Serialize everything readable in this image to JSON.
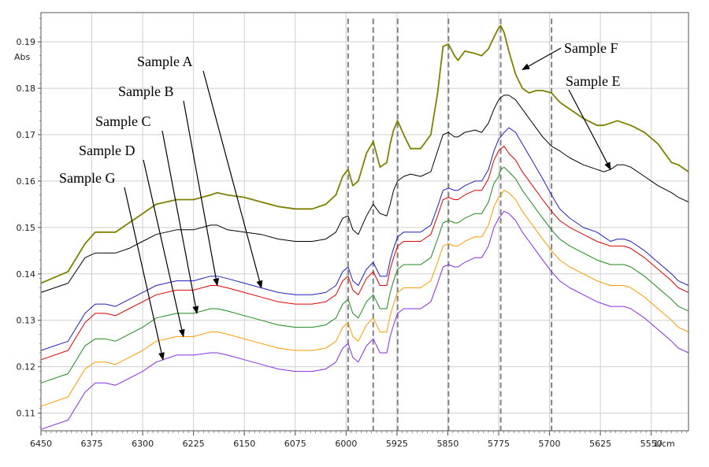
{
  "chart_data": {
    "type": "line",
    "ylabel": "Abs",
    "xunit": "1/cm",
    "xlim": [
      6450,
      5495
    ],
    "ylim": [
      0.1062,
      0.1963
    ],
    "x_ticks": [
      6450,
      6375,
      6300,
      6225,
      6150,
      6075,
      6000,
      5925,
      5850,
      5775,
      5700,
      5625,
      5550
    ],
    "y_ticks": [
      0.11,
      0.12,
      0.13,
      0.14,
      0.15,
      0.16,
      0.17,
      0.18,
      0.19
    ],
    "reference_lines_x": [
      5997,
      5960,
      5924,
      5849,
      5772,
      5697
    ],
    "series": [
      {
        "name": "Sample F",
        "color": "#808000",
        "x": [
          6450,
          6410,
          6385,
          6370,
          6355,
          6340,
          6320,
          6300,
          6280,
          6250,
          6225,
          6200,
          6190,
          6175,
          6150,
          6125,
          6100,
          6075,
          6050,
          6030,
          6015,
          6005,
          5997,
          5990,
          5982,
          5970,
          5960,
          5950,
          5940,
          5935,
          5930,
          5924,
          5915,
          5905,
          5890,
          5875,
          5865,
          5857,
          5849,
          5840,
          5835,
          5825,
          5810,
          5800,
          5790,
          5782,
          5775,
          5772,
          5767,
          5760,
          5750,
          5740,
          5730,
          5720,
          5710,
          5697,
          5685,
          5670,
          5650,
          5630,
          5620,
          5610,
          5600,
          5590,
          5580,
          5560,
          5540,
          5520,
          5510,
          5495
        ],
        "y": [
          0.138,
          0.1405,
          0.1465,
          0.149,
          0.149,
          0.149,
          0.151,
          0.153,
          0.155,
          0.156,
          0.156,
          0.157,
          0.1575,
          0.157,
          0.1565,
          0.1555,
          0.1545,
          0.154,
          0.154,
          0.155,
          0.157,
          0.161,
          0.1625,
          0.159,
          0.16,
          0.166,
          0.1685,
          0.163,
          0.164,
          0.168,
          0.171,
          0.173,
          0.17,
          0.167,
          0.167,
          0.17,
          0.179,
          0.189,
          0.1895,
          0.187,
          0.186,
          0.188,
          0.1875,
          0.187,
          0.1885,
          0.191,
          0.193,
          0.1935,
          0.192,
          0.188,
          0.183,
          0.18,
          0.179,
          0.1795,
          0.1795,
          0.179,
          0.177,
          0.1755,
          0.1735,
          0.172,
          0.172,
          0.1725,
          0.173,
          0.1725,
          0.172,
          0.1705,
          0.168,
          0.164,
          0.1635,
          0.162
        ]
      },
      {
        "name": "Sample E",
        "color": "#000000",
        "x": [
          6450,
          6410,
          6385,
          6370,
          6355,
          6340,
          6320,
          6300,
          6280,
          6250,
          6225,
          6200,
          6190,
          6175,
          6150,
          6125,
          6100,
          6075,
          6050,
          6030,
          6015,
          6005,
          5997,
          5990,
          5982,
          5970,
          5960,
          5950,
          5940,
          5935,
          5930,
          5924,
          5915,
          5905,
          5890,
          5875,
          5865,
          5857,
          5849,
          5840,
          5835,
          5825,
          5810,
          5800,
          5790,
          5782,
          5775,
          5772,
          5767,
          5760,
          5750,
          5740,
          5730,
          5720,
          5710,
          5697,
          5685,
          5670,
          5650,
          5630,
          5620,
          5610,
          5600,
          5590,
          5580,
          5560,
          5540,
          5520,
          5510,
          5495
        ],
        "y": [
          0.136,
          0.138,
          0.1435,
          0.1445,
          0.1445,
          0.1445,
          0.1455,
          0.147,
          0.1485,
          0.1495,
          0.1495,
          0.1505,
          0.1505,
          0.1495,
          0.149,
          0.1485,
          0.1475,
          0.147,
          0.147,
          0.1475,
          0.149,
          0.152,
          0.1525,
          0.1495,
          0.1485,
          0.1525,
          0.155,
          0.153,
          0.1525,
          0.155,
          0.158,
          0.16,
          0.161,
          0.1615,
          0.161,
          0.162,
          0.1665,
          0.17,
          0.1705,
          0.1695,
          0.1695,
          0.1705,
          0.171,
          0.1705,
          0.1725,
          0.1755,
          0.1775,
          0.178,
          0.1785,
          0.1785,
          0.1775,
          0.1755,
          0.1735,
          0.1715,
          0.1695,
          0.1675,
          0.1665,
          0.165,
          0.1635,
          0.1625,
          0.162,
          0.1625,
          0.1635,
          0.1635,
          0.163,
          0.161,
          0.159,
          0.1575,
          0.1565,
          0.1555
        ]
      },
      {
        "name": "Sample A",
        "color": "#1f1fbf",
        "x": [
          6450,
          6410,
          6385,
          6370,
          6355,
          6340,
          6320,
          6300,
          6280,
          6250,
          6225,
          6200,
          6190,
          6175,
          6150,
          6125,
          6100,
          6075,
          6050,
          6030,
          6015,
          6005,
          5997,
          5990,
          5982,
          5970,
          5960,
          5950,
          5940,
          5935,
          5930,
          5924,
          5915,
          5905,
          5890,
          5875,
          5865,
          5857,
          5849,
          5840,
          5835,
          5825,
          5810,
          5800,
          5790,
          5782,
          5775,
          5772,
          5767,
          5760,
          5750,
          5740,
          5730,
          5720,
          5710,
          5697,
          5685,
          5670,
          5650,
          5630,
          5620,
          5610,
          5600,
          5590,
          5580,
          5560,
          5540,
          5520,
          5510,
          5495
        ],
        "y": [
          0.1235,
          0.1255,
          0.1315,
          0.1335,
          0.1335,
          0.133,
          0.1345,
          0.136,
          0.1375,
          0.1385,
          0.1385,
          0.1395,
          0.1395,
          0.139,
          0.138,
          0.137,
          0.136,
          0.1355,
          0.1355,
          0.136,
          0.1375,
          0.1405,
          0.1415,
          0.1385,
          0.1375,
          0.141,
          0.1425,
          0.1395,
          0.1395,
          0.143,
          0.1455,
          0.148,
          0.149,
          0.149,
          0.149,
          0.1505,
          0.1545,
          0.158,
          0.1585,
          0.158,
          0.158,
          0.159,
          0.16,
          0.16,
          0.1625,
          0.1665,
          0.169,
          0.1695,
          0.1705,
          0.1715,
          0.1705,
          0.168,
          0.1655,
          0.163,
          0.1605,
          0.157,
          0.154,
          0.152,
          0.15,
          0.149,
          0.148,
          0.147,
          0.1475,
          0.1475,
          0.147,
          0.145,
          0.1425,
          0.14,
          0.1385,
          0.1375
        ]
      },
      {
        "name": "Sample B",
        "color": "#e00000",
        "x": [
          6450,
          6410,
          6385,
          6370,
          6355,
          6340,
          6320,
          6300,
          6280,
          6250,
          6225,
          6200,
          6190,
          6175,
          6150,
          6125,
          6100,
          6075,
          6050,
          6030,
          6015,
          6005,
          5997,
          5990,
          5982,
          5970,
          5960,
          5950,
          5940,
          5935,
          5930,
          5924,
          5915,
          5905,
          5890,
          5875,
          5865,
          5857,
          5849,
          5840,
          5835,
          5825,
          5810,
          5800,
          5790,
          5782,
          5775,
          5772,
          5767,
          5760,
          5750,
          5740,
          5730,
          5720,
          5710,
          5697,
          5685,
          5670,
          5650,
          5630,
          5620,
          5610,
          5600,
          5590,
          5580,
          5560,
          5540,
          5520,
          5510,
          5495
        ],
        "y": [
          0.1215,
          0.1235,
          0.1295,
          0.1315,
          0.1315,
          0.131,
          0.1325,
          0.134,
          0.1355,
          0.1365,
          0.1365,
          0.1375,
          0.1375,
          0.137,
          0.136,
          0.135,
          0.134,
          0.1335,
          0.1335,
          0.134,
          0.1355,
          0.1385,
          0.1395,
          0.1365,
          0.1355,
          0.139,
          0.1405,
          0.1375,
          0.1375,
          0.141,
          0.1435,
          0.146,
          0.147,
          0.147,
          0.147,
          0.1485,
          0.1525,
          0.156,
          0.1565,
          0.156,
          0.156,
          0.157,
          0.158,
          0.158,
          0.1605,
          0.1645,
          0.1665,
          0.167,
          0.1675,
          0.166,
          0.1645,
          0.162,
          0.16,
          0.158,
          0.156,
          0.1535,
          0.1515,
          0.15,
          0.1485,
          0.147,
          0.1465,
          0.146,
          0.146,
          0.146,
          0.1455,
          0.1435,
          0.141,
          0.1385,
          0.137,
          0.136
        ]
      },
      {
        "name": "Sample C",
        "color": "#1a8a1a",
        "x": [
          6450,
          6410,
          6385,
          6370,
          6355,
          6340,
          6320,
          6300,
          6280,
          6250,
          6225,
          6200,
          6190,
          6175,
          6150,
          6125,
          6100,
          6075,
          6050,
          6030,
          6015,
          6005,
          5997,
          5990,
          5982,
          5970,
          5960,
          5950,
          5940,
          5935,
          5930,
          5924,
          5915,
          5905,
          5890,
          5875,
          5865,
          5857,
          5849,
          5840,
          5835,
          5825,
          5810,
          5800,
          5790,
          5782,
          5775,
          5772,
          5767,
          5760,
          5750,
          5740,
          5730,
          5720,
          5710,
          5697,
          5685,
          5670,
          5650,
          5630,
          5620,
          5610,
          5600,
          5590,
          5580,
          5560,
          5540,
          5520,
          5510,
          5495
        ],
        "y": [
          0.1165,
          0.1185,
          0.1245,
          0.126,
          0.126,
          0.1255,
          0.127,
          0.1285,
          0.1305,
          0.1315,
          0.1315,
          0.1325,
          0.1325,
          0.132,
          0.131,
          0.13,
          0.129,
          0.1285,
          0.1285,
          0.129,
          0.1305,
          0.1335,
          0.1345,
          0.1315,
          0.1305,
          0.134,
          0.1355,
          0.1325,
          0.1325,
          0.136,
          0.1385,
          0.141,
          0.142,
          0.142,
          0.142,
          0.1435,
          0.1475,
          0.151,
          0.1515,
          0.151,
          0.151,
          0.152,
          0.153,
          0.153,
          0.1555,
          0.1595,
          0.161,
          0.1625,
          0.163,
          0.162,
          0.1605,
          0.158,
          0.156,
          0.154,
          0.152,
          0.1495,
          0.1475,
          0.146,
          0.1445,
          0.143,
          0.1425,
          0.142,
          0.142,
          0.142,
          0.1415,
          0.1395,
          0.137,
          0.1345,
          0.133,
          0.132
        ]
      },
      {
        "name": "Sample D",
        "color": "#ff9900",
        "x": [
          6450,
          6410,
          6385,
          6370,
          6355,
          6340,
          6320,
          6300,
          6280,
          6250,
          6225,
          6200,
          6190,
          6175,
          6150,
          6125,
          6100,
          6075,
          6050,
          6030,
          6015,
          6005,
          5997,
          5990,
          5982,
          5970,
          5960,
          5950,
          5940,
          5935,
          5930,
          5924,
          5915,
          5905,
          5890,
          5875,
          5865,
          5857,
          5849,
          5840,
          5835,
          5825,
          5810,
          5800,
          5790,
          5782,
          5775,
          5772,
          5767,
          5760,
          5750,
          5740,
          5730,
          5720,
          5710,
          5697,
          5685,
          5670,
          5650,
          5630,
          5620,
          5610,
          5600,
          5590,
          5580,
          5560,
          5540,
          5520,
          5510,
          5495
        ],
        "y": [
          0.1115,
          0.1135,
          0.1195,
          0.121,
          0.121,
          0.1205,
          0.122,
          0.1235,
          0.1255,
          0.1265,
          0.1265,
          0.1275,
          0.1275,
          0.127,
          0.126,
          0.125,
          0.124,
          0.1235,
          0.1235,
          0.124,
          0.1255,
          0.1285,
          0.1295,
          0.1265,
          0.1255,
          0.129,
          0.1305,
          0.1275,
          0.1275,
          0.131,
          0.1335,
          0.136,
          0.137,
          0.137,
          0.137,
          0.1385,
          0.1425,
          0.146,
          0.1465,
          0.146,
          0.146,
          0.147,
          0.148,
          0.148,
          0.1505,
          0.1545,
          0.1565,
          0.157,
          0.158,
          0.1575,
          0.156,
          0.1535,
          0.1515,
          0.1495,
          0.1475,
          0.145,
          0.143,
          0.1415,
          0.14,
          0.1385,
          0.138,
          0.1375,
          0.1375,
          0.1375,
          0.137,
          0.135,
          0.1325,
          0.13,
          0.1285,
          0.1275
        ]
      },
      {
        "name": "Sample G",
        "color": "#8a2be2",
        "x": [
          6450,
          6410,
          6385,
          6370,
          6355,
          6340,
          6320,
          6300,
          6280,
          6250,
          6225,
          6200,
          6190,
          6175,
          6150,
          6125,
          6100,
          6075,
          6050,
          6030,
          6015,
          6005,
          5997,
          5990,
          5982,
          5970,
          5960,
          5950,
          5940,
          5935,
          5930,
          5924,
          5915,
          5905,
          5890,
          5875,
          5865,
          5857,
          5849,
          5840,
          5835,
          5825,
          5810,
          5800,
          5790,
          5782,
          5775,
          5772,
          5767,
          5760,
          5750,
          5740,
          5730,
          5720,
          5710,
          5697,
          5685,
          5670,
          5650,
          5630,
          5620,
          5610,
          5600,
          5590,
          5580,
          5560,
          5540,
          5520,
          5510,
          5495
        ],
        "y": [
          0.1065,
          0.1085,
          0.1145,
          0.1165,
          0.1165,
          0.116,
          0.1175,
          0.119,
          0.121,
          0.1225,
          0.1225,
          0.123,
          0.123,
          0.1225,
          0.1215,
          0.1205,
          0.1195,
          0.119,
          0.119,
          0.1195,
          0.121,
          0.124,
          0.125,
          0.122,
          0.121,
          0.1245,
          0.126,
          0.123,
          0.123,
          0.1265,
          0.129,
          0.1315,
          0.1325,
          0.1325,
          0.1325,
          0.134,
          0.138,
          0.1415,
          0.142,
          0.1415,
          0.1415,
          0.1425,
          0.1435,
          0.1435,
          0.146,
          0.15,
          0.152,
          0.1525,
          0.1535,
          0.153,
          0.1515,
          0.149,
          0.147,
          0.145,
          0.143,
          0.1405,
          0.1385,
          0.137,
          0.1355,
          0.134,
          0.1335,
          0.133,
          0.133,
          0.133,
          0.1325,
          0.1305,
          0.128,
          0.1255,
          0.124,
          0.123
        ]
      }
    ],
    "annotations": [
      {
        "text": "Sample A",
        "target_x": 6125,
        "target_y": 0.137
      },
      {
        "text": "Sample B",
        "target_x": 6190,
        "target_y": 0.1375
      },
      {
        "text": "Sample C",
        "target_x": 6220,
        "target_y": 0.1315
      },
      {
        "text": "Sample D",
        "target_x": 6240,
        "target_y": 0.1265
      },
      {
        "text": "Sample G",
        "target_x": 6270,
        "target_y": 0.1215
      },
      {
        "text": "Sample F",
        "target_x": 5740,
        "target_y": 0.184
      },
      {
        "text": "Sample E",
        "target_x": 5610,
        "target_y": 0.1625
      }
    ]
  }
}
